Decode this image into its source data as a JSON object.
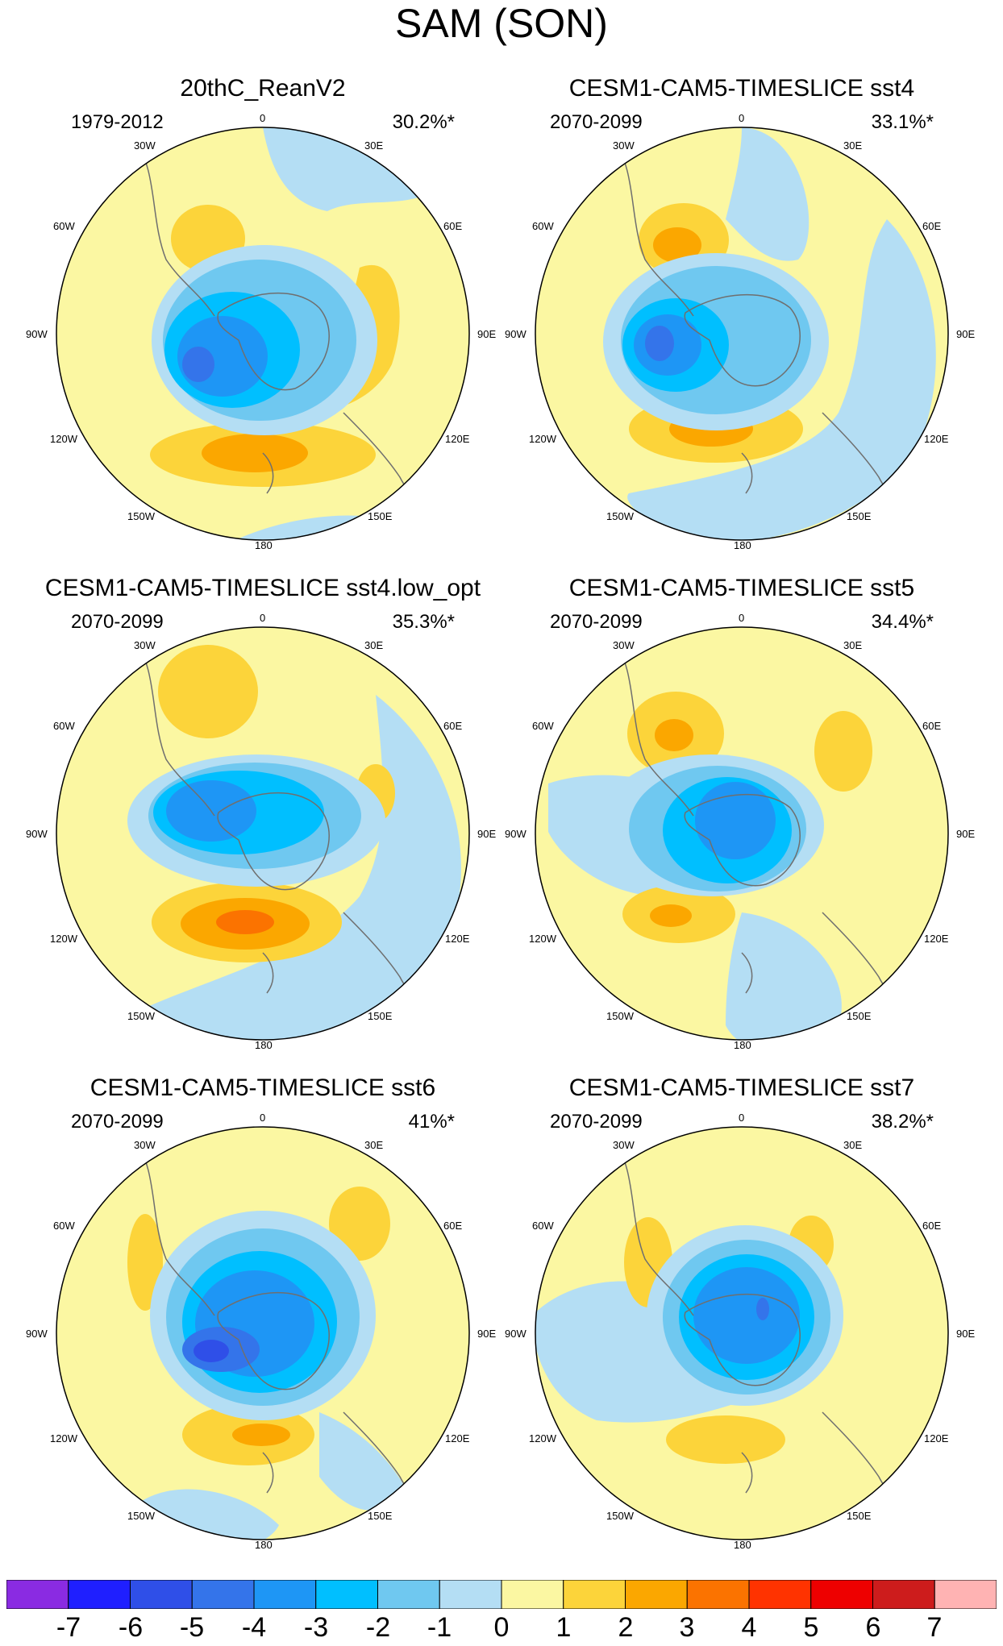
{
  "title": "SAM (SON)",
  "panels": [
    {
      "title": "20thC_ReanV2",
      "period": "1979-2012",
      "variance": "30.2%*"
    },
    {
      "title": "CESM1-CAM5-TIMESLICE sst4",
      "period": "2070-2099",
      "variance": "33.1%*"
    },
    {
      "title": "CESM1-CAM5-TIMESLICE sst4.low_opt",
      "period": "2070-2099",
      "variance": "35.3%*"
    },
    {
      "title": "CESM1-CAM5-TIMESLICE sst5",
      "period": "2070-2099",
      "variance": "34.4%*"
    },
    {
      "title": "CESM1-CAM5-TIMESLICE sst6",
      "period": "2070-2099",
      "variance": "41%*"
    },
    {
      "title": "CESM1-CAM5-TIMESLICE sst7",
      "period": "2070-2099",
      "variance": "38.2%*"
    }
  ],
  "longitude_labels": [
    "0",
    "30E",
    "60E",
    "90E",
    "120E",
    "150E",
    "180",
    "150W",
    "120W",
    "90W",
    "60W",
    "30W"
  ],
  "colorbar": {
    "ticks": [
      "-7",
      "-6",
      "-5",
      "-4",
      "-3",
      "-2",
      "-1",
      "0",
      "1",
      "2",
      "3",
      "4",
      "5",
      "6",
      "7"
    ],
    "colors": [
      "#8a2be2",
      "#1f1fff",
      "#2f4fe8",
      "#3474ea",
      "#1e96f5",
      "#00bfff",
      "#6fc8f0",
      "#b4def4",
      "#fbf7a2",
      "#fcd43a",
      "#fba700",
      "#fb7300",
      "#ff3300",
      "#ee0000",
      "#cd1c1c",
      "#ffb3b3"
    ]
  },
  "colors": {
    "ocean": "#fbf7a2",
    "coast": "#6f6f6f"
  }
}
